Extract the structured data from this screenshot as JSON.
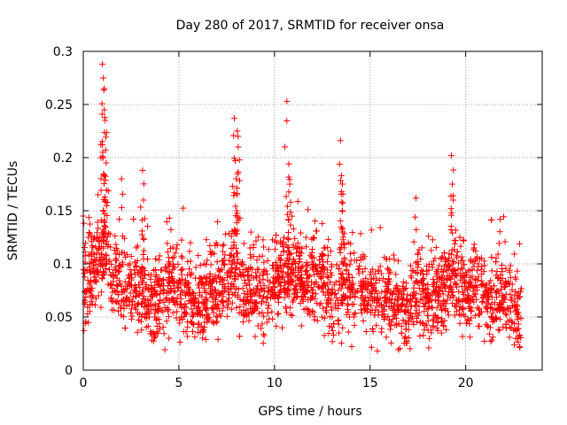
{
  "chart_data": {
    "type": "scatter",
    "title": "Day 280 of 2017, SRMTID for receiver onsa",
    "xlabel": "GPS time / hours",
    "ylabel": "SRMTID / TECUs",
    "xlim": [
      0,
      24
    ],
    "ylim": [
      0,
      0.3
    ],
    "xticks": [
      0,
      5,
      10,
      15,
      20
    ],
    "yticks": [
      0,
      0.05,
      0.1,
      0.15,
      0.2,
      0.25,
      0.3
    ],
    "xtick_labels": [
      "0",
      "5",
      "10",
      "15",
      "20"
    ],
    "ytick_labels": [
      "0",
      "0.05",
      "0.1",
      "0.15",
      "0.2",
      "0.25",
      "0.3"
    ],
    "grid": true,
    "marker": "+",
    "color": "#ff0000",
    "x_data_max": 22.9,
    "series": [
      {
        "name": "SRMTID",
        "baseline": [
          [
            0.0,
            0.075
          ],
          [
            0.5,
            0.095
          ],
          [
            1.0,
            0.11
          ],
          [
            1.5,
            0.095
          ],
          [
            2.0,
            0.08
          ],
          [
            2.5,
            0.075
          ],
          [
            3.0,
            0.075
          ],
          [
            3.5,
            0.065
          ],
          [
            4.0,
            0.065
          ],
          [
            4.5,
            0.075
          ],
          [
            5.0,
            0.075
          ],
          [
            5.5,
            0.07
          ],
          [
            6.0,
            0.065
          ],
          [
            6.5,
            0.07
          ],
          [
            7.0,
            0.075
          ],
          [
            7.5,
            0.085
          ],
          [
            8.0,
            0.09
          ],
          [
            8.5,
            0.08
          ],
          [
            9.0,
            0.075
          ],
          [
            9.5,
            0.075
          ],
          [
            10.0,
            0.08
          ],
          [
            10.5,
            0.09
          ],
          [
            11.0,
            0.09
          ],
          [
            11.5,
            0.085
          ],
          [
            12.0,
            0.09
          ],
          [
            12.5,
            0.085
          ],
          [
            13.0,
            0.065
          ],
          [
            13.5,
            0.075
          ],
          [
            14.0,
            0.08
          ],
          [
            14.5,
            0.08
          ],
          [
            15.0,
            0.075
          ],
          [
            15.5,
            0.07
          ],
          [
            16.0,
            0.065
          ],
          [
            16.5,
            0.06
          ],
          [
            17.0,
            0.06
          ],
          [
            17.5,
            0.07
          ],
          [
            18.0,
            0.07
          ],
          [
            18.5,
            0.07
          ],
          [
            19.0,
            0.075
          ],
          [
            19.5,
            0.085
          ],
          [
            20.0,
            0.08
          ],
          [
            20.5,
            0.075
          ],
          [
            21.0,
            0.065
          ],
          [
            21.5,
            0.06
          ],
          [
            22.0,
            0.07
          ],
          [
            22.5,
            0.06
          ],
          [
            22.9,
            0.05
          ]
        ],
        "peaks": [
          {
            "x": 0.0,
            "y": 0.145
          },
          {
            "x": 1.0,
            "y": 0.288
          },
          {
            "x": 1.05,
            "y": 0.275
          },
          {
            "x": 1.1,
            "y": 0.265
          },
          {
            "x": 1.1,
            "y": 0.245
          },
          {
            "x": 1.15,
            "y": 0.235
          },
          {
            "x": 1.0,
            "y": 0.212
          },
          {
            "x": 1.2,
            "y": 0.195
          },
          {
            "x": 2.0,
            "y": 0.18
          },
          {
            "x": 3.1,
            "y": 0.188
          },
          {
            "x": 3.15,
            "y": 0.16
          },
          {
            "x": 7.9,
            "y": 0.237
          },
          {
            "x": 8.05,
            "y": 0.225
          },
          {
            "x": 8.1,
            "y": 0.22
          },
          {
            "x": 7.95,
            "y": 0.197
          },
          {
            "x": 8.0,
            "y": 0.18
          },
          {
            "x": 10.65,
            "y": 0.253
          },
          {
            "x": 10.75,
            "y": 0.194
          },
          {
            "x": 10.8,
            "y": 0.175
          },
          {
            "x": 13.45,
            "y": 0.216
          },
          {
            "x": 13.5,
            "y": 0.183
          },
          {
            "x": 13.55,
            "y": 0.175
          },
          {
            "x": 13.5,
            "y": 0.168
          },
          {
            "x": 17.4,
            "y": 0.162
          },
          {
            "x": 19.25,
            "y": 0.202
          },
          {
            "x": 19.3,
            "y": 0.175
          },
          {
            "x": 19.35,
            "y": 0.16
          },
          {
            "x": 21.8,
            "y": 0.142
          }
        ]
      }
    ]
  }
}
